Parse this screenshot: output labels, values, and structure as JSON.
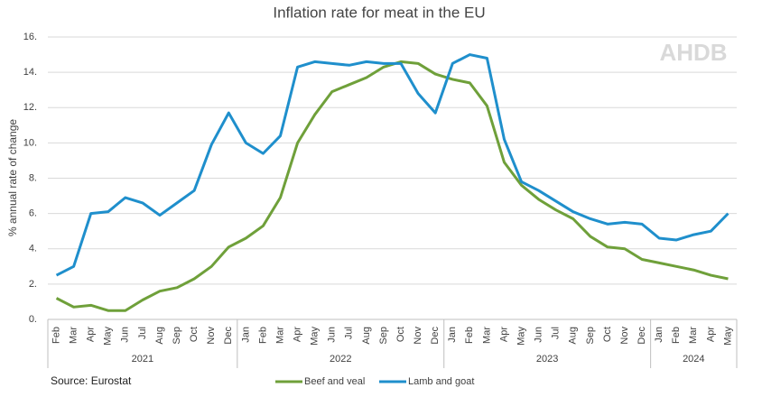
{
  "chart_data": {
    "type": "line",
    "title": "Inflation rate for meat in the EU",
    "y_label": "% annual rate of change",
    "source": "Source: Eurostat",
    "watermark": "AHDB",
    "groups": [
      {
        "label": "2021",
        "categories": [
          "Feb",
          "Mar",
          "Apr",
          "May",
          "Jun",
          "Jul",
          "Aug",
          "Sep",
          "Oct",
          "Nov",
          "Dec"
        ]
      },
      {
        "label": "2022",
        "categories": [
          "Jan",
          "Feb",
          "Mar",
          "Apr",
          "May",
          "Jun",
          "Jul",
          "Aug",
          "Sep",
          "Oct",
          "Nov",
          "Dec"
        ]
      },
      {
        "label": "2023",
        "categories": [
          "Jan",
          "Feb",
          "Mar",
          "Apr",
          "May",
          "Jun",
          "Jul",
          "Aug",
          "Sep",
          "Oct",
          "Nov",
          "Dec"
        ]
      },
      {
        "label": "2024",
        "categories": [
          "Jan",
          "Feb",
          "Mar",
          "Apr",
          "May"
        ]
      }
    ],
    "series": [
      {
        "name": "Beef and veal",
        "color": "#6fa03a",
        "values": [
          1.2,
          0.7,
          0.8,
          0.5,
          0.5,
          1.1,
          1.6,
          1.8,
          2.3,
          3.0,
          4.1,
          4.6,
          5.3,
          6.9,
          10.0,
          11.6,
          12.9,
          13.3,
          13.7,
          14.3,
          14.6,
          14.5,
          13.9,
          13.6,
          13.4,
          12.1,
          8.9,
          7.6,
          6.8,
          6.2,
          5.7,
          4.7,
          4.1,
          4.0,
          3.4,
          3.2,
          3.0,
          2.8,
          2.5,
          2.3
        ]
      },
      {
        "name": "Lamb and goat",
        "color": "#1f8fcc",
        "values": [
          2.5,
          3.0,
          6.0,
          6.1,
          6.9,
          6.6,
          5.9,
          6.6,
          7.3,
          9.9,
          11.7,
          10.0,
          9.4,
          10.4,
          14.3,
          14.6,
          14.5,
          14.4,
          14.6,
          14.5,
          14.5,
          12.8,
          11.7,
          14.5,
          15.0,
          14.8,
          10.2,
          7.8,
          7.3,
          6.7,
          6.1,
          5.7,
          5.4,
          5.5,
          5.4,
          4.6,
          4.5,
          4.8,
          5.0,
          6.0
        ]
      }
    ],
    "ylim": [
      0,
      16
    ],
    "yticks": [
      {
        "value": 0,
        "label": "0."
      },
      {
        "value": 2,
        "label": "2."
      },
      {
        "value": 4,
        "label": "4."
      },
      {
        "value": 6,
        "label": "6."
      },
      {
        "value": 8,
        "label": "8."
      },
      {
        "value": 10,
        "label": "10."
      },
      {
        "value": 12,
        "label": "12."
      },
      {
        "value": 14,
        "label": "14."
      },
      {
        "value": 16,
        "label": "16."
      }
    ],
    "grid": true
  }
}
